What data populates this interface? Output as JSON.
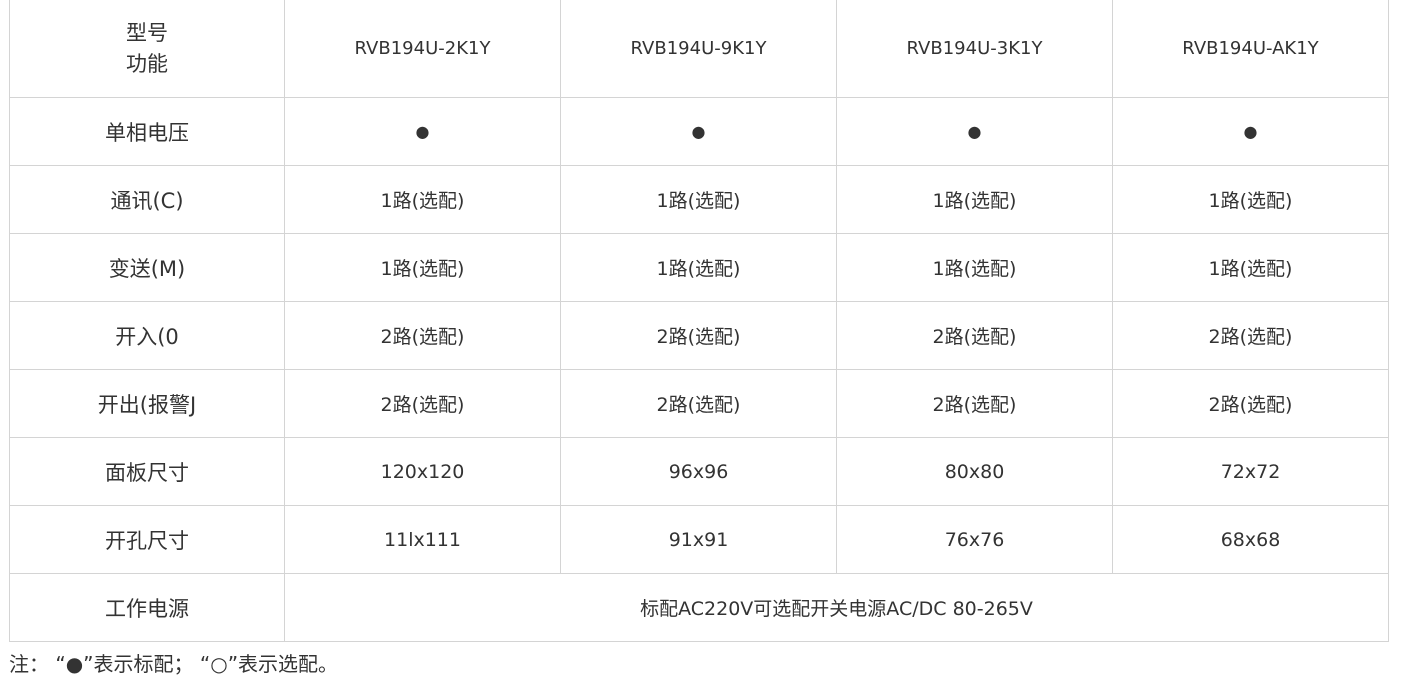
{
  "header": {
    "corner_line1": "型号",
    "corner_line2": "功能",
    "models": [
      "RVB194U-2K1Y",
      "RVB194U-9K1Y",
      "RVB194U-3K1Y",
      "RVB194U-AK1Y"
    ]
  },
  "rows": [
    {
      "label": "单相电压",
      "values": [
        "●",
        "●",
        "●",
        "●"
      ]
    },
    {
      "label": "通讯(C)",
      "values": [
        "1路(选配)",
        "1路(选配)",
        "1路(选配)",
        "1路(选配)"
      ]
    },
    {
      "label": "变送(M)",
      "values": [
        "1路(选配)",
        "1路(选配)",
        "1路(选配)",
        "1路(选配)"
      ]
    },
    {
      "label": "开入(0",
      "values": [
        "2路(选配)",
        "2路(选配)",
        "2路(选配)",
        "2路(选配)"
      ]
    },
    {
      "label": "开出(报警J",
      "values": [
        "2路(选配)",
        "2路(选配)",
        "2路(选配)",
        "2路(选配)"
      ]
    },
    {
      "label": "面板尺寸",
      "values": [
        "120x120",
        "96x96",
        "80x80",
        "72x72"
      ]
    },
    {
      "label": "开孔尺寸",
      "values": [
        "11lx111",
        "91x91",
        "76x76",
        "68x68"
      ]
    }
  ],
  "power": {
    "label": "工作电源",
    "value": "标配AC220V可选配开关电源AC/DC 80-265V"
  },
  "note": "注： “●”表示标配； “○”表示选配。"
}
